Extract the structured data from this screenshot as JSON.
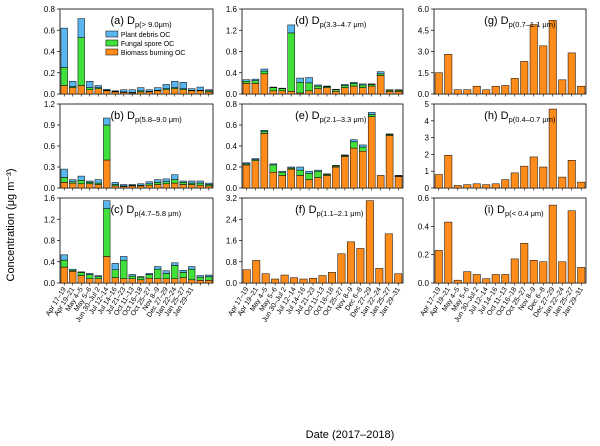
{
  "figure": {
    "ylabel": "Concentration (μg m⁻³)",
    "xlabel": "Date (2017–2018)"
  },
  "colors": {
    "plant": "#5ab6ee",
    "fungal": "#41e03b",
    "biomass": "#ff8c1a",
    "edge": "#000000"
  },
  "chart_data": [
    {
      "type": "bar",
      "stacked": true,
      "id": "a",
      "prefix": "(a) D",
      "sub": "p(> 9.0μm)",
      "ylim": [
        0,
        0.8
      ],
      "yticks": [
        0.0,
        0.2,
        0.4,
        0.6,
        0.8
      ],
      "legend": [
        "Plant debris OC",
        "Fungal spore OC",
        "Biomass burning OC"
      ],
      "series": [
        {
          "name": "Biomass burning OC",
          "values": [
            0.08,
            0.06,
            0.08,
            0.04,
            0.05,
            0.03,
            0.02,
            0.015,
            0.01,
            0.02,
            0.02,
            0.03,
            0.04,
            0.05,
            0.04,
            0.03,
            0.03,
            0.02
          ]
        },
        {
          "name": "Fungal spore OC",
          "values": [
            0.17,
            0.01,
            0.45,
            0.02,
            0.01,
            0.005,
            0.005,
            0.005,
            0.005,
            0.01,
            0.005,
            0.005,
            0.01,
            0.01,
            0.01,
            0.005,
            0.005,
            0.01
          ]
        },
        {
          "name": "Plant debris OC",
          "values": [
            0.37,
            0.05,
            0.18,
            0.06,
            0.02,
            0.01,
            0.005,
            0.02,
            0.025,
            0.03,
            0.015,
            0.025,
            0.04,
            0.06,
            0.06,
            0.015,
            0.03,
            0.01
          ]
        }
      ]
    },
    {
      "type": "bar",
      "stacked": true,
      "id": "b",
      "prefix": "(b) D",
      "sub": "p(5.8–9.0 μm)",
      "ylim": [
        0,
        1.2
      ],
      "yticks": [
        0.0,
        0.3,
        0.6,
        0.9,
        1.2
      ],
      "series": [
        {
          "name": "Biomass burning OC",
          "values": [
            0.08,
            0.07,
            0.06,
            0.06,
            0.05,
            0.4,
            0.03,
            0.02,
            0.03,
            0.03,
            0.04,
            0.05,
            0.06,
            0.07,
            0.05,
            0.05,
            0.04,
            0.03
          ]
        },
        {
          "name": "Fungal spore OC",
          "values": [
            0.07,
            0.02,
            0.05,
            0.02,
            0.02,
            0.5,
            0.02,
            0.01,
            0.01,
            0.01,
            0.02,
            0.03,
            0.03,
            0.05,
            0.03,
            0.02,
            0.03,
            0.02
          ]
        },
        {
          "name": "Plant debris OC",
          "values": [
            0.12,
            0.03,
            0.06,
            0.02,
            0.05,
            0.1,
            0.03,
            0.02,
            0.01,
            0.02,
            0.03,
            0.04,
            0.04,
            0.07,
            0.02,
            0.03,
            0.03,
            0.02
          ]
        }
      ]
    },
    {
      "type": "bar",
      "stacked": true,
      "id": "c",
      "prefix": "(c) D",
      "sub": "p(4.7–5.8 μm)",
      "ylim": [
        0,
        1.6
      ],
      "yticks": [
        0.0,
        0.4,
        0.8,
        1.2,
        1.6
      ],
      "series": [
        {
          "name": "Biomass burning OC",
          "values": [
            0.3,
            0.22,
            0.14,
            0.08,
            0.08,
            0.5,
            0.1,
            0.08,
            0.08,
            0.06,
            0.09,
            0.08,
            0.08,
            0.08,
            0.1,
            0.06,
            0.05,
            0.05
          ]
        },
        {
          "name": "Fungal spore OC",
          "values": [
            0.13,
            0.02,
            0.06,
            0.08,
            0.04,
            0.9,
            0.15,
            0.35,
            0.05,
            0.05,
            0.07,
            0.18,
            0.1,
            0.25,
            0.1,
            0.2,
            0.06,
            0.07
          ]
        },
        {
          "name": "Plant debris OC",
          "values": [
            0.1,
            0.02,
            0.01,
            0.02,
            0.02,
            0.15,
            0.12,
            0.07,
            0.03,
            0.01,
            0.02,
            0.05,
            0.05,
            0.05,
            0.04,
            0.05,
            0.03,
            0.03
          ]
        }
      ]
    },
    {
      "type": "bar",
      "stacked": true,
      "id": "d",
      "prefix": "(d) D",
      "sub": "p(3.3–4.7 μm)",
      "ylim": [
        0,
        1.6
      ],
      "yticks": [
        0.0,
        0.4,
        0.8,
        1.2,
        1.6
      ],
      "series": [
        {
          "name": "Biomass burning OC",
          "values": [
            0.2,
            0.2,
            0.38,
            0.06,
            0.06,
            0.05,
            0.02,
            0.06,
            0.1,
            0.12,
            0.05,
            0.12,
            0.15,
            0.12,
            0.15,
            0.35,
            0.05,
            0.05
          ]
        },
        {
          "name": "Fungal spore OC",
          "values": [
            0.04,
            0.05,
            0.05,
            0.06,
            0.04,
            1.1,
            0.2,
            0.15,
            0.05,
            0.02,
            0.03,
            0.04,
            0.05,
            0.05,
            0.03,
            0.03,
            0.02,
            0.02
          ]
        },
        {
          "name": "Plant debris OC",
          "values": [
            0.03,
            0.03,
            0.04,
            0.01,
            0.01,
            0.15,
            0.08,
            0.1,
            0.02,
            0.01,
            0.01,
            0.02,
            0.02,
            0.02,
            0.01,
            0.04,
            0.01,
            0.01
          ]
        }
      ]
    },
    {
      "type": "bar",
      "stacked": true,
      "id": "e",
      "prefix": "(e) D",
      "sub": "p(2.1–3.3 μm)",
      "ylim": [
        0,
        0.8
      ],
      "yticks": [
        0.0,
        0.2,
        0.4,
        0.6,
        0.8
      ],
      "series": [
        {
          "name": "Biomass burning OC",
          "values": [
            0.22,
            0.26,
            0.52,
            0.15,
            0.12,
            0.18,
            0.12,
            0.08,
            0.1,
            0.12,
            0.2,
            0.3,
            0.38,
            0.35,
            0.68,
            0.12,
            0.5,
            0.11
          ]
        },
        {
          "name": "Fungal spore OC",
          "values": [
            0.01,
            0.01,
            0.02,
            0.07,
            0.03,
            0.01,
            0.05,
            0.06,
            0.06,
            0.01,
            0.01,
            0.01,
            0.06,
            0.04,
            0.02,
            0.0,
            0.01,
            0.005
          ]
        },
        {
          "name": "Plant debris OC",
          "values": [
            0.01,
            0.01,
            0.01,
            0.01,
            0.01,
            0.01,
            0.03,
            0.02,
            0.01,
            0.005,
            0.005,
            0.005,
            0.02,
            0.02,
            0.02,
            0.0,
            0.005,
            0.005
          ]
        }
      ]
    },
    {
      "type": "bar",
      "stacked": true,
      "id": "f",
      "prefix": "(f) D",
      "sub": "p(1.1–2.1 μm)",
      "ylim": [
        0,
        3.2
      ],
      "yticks": [
        0.0,
        0.8,
        1.6,
        2.4,
        3.2
      ],
      "series": [
        {
          "name": "Biomass burning OC",
          "values": [
            0.5,
            0.85,
            0.35,
            0.15,
            0.3,
            0.2,
            0.15,
            0.18,
            0.28,
            0.4,
            1.1,
            1.55,
            1.3,
            3.1,
            0.55,
            1.85,
            0.35
          ]
        }
      ]
    },
    {
      "type": "bar",
      "stacked": true,
      "id": "g",
      "prefix": "(g) D",
      "sub": "p(0.7–1.1 μm)",
      "ylim": [
        0,
        6.0
      ],
      "yticks": [
        0.0,
        1.5,
        3.0,
        4.5,
        6.0
      ],
      "series": [
        {
          "name": "Biomass burning OC",
          "values": [
            1.5,
            2.8,
            0.3,
            0.3,
            0.55,
            0.3,
            0.55,
            0.6,
            1.1,
            2.3,
            4.9,
            3.4,
            5.2,
            1.0,
            2.9,
            0.55
          ]
        }
      ]
    },
    {
      "type": "bar",
      "stacked": true,
      "id": "h",
      "prefix": "(h) D",
      "sub": "p(0.4–0.7 μm)",
      "ylim": [
        0,
        5
      ],
      "yticks": [
        0,
        1,
        2,
        3,
        4,
        5
      ],
      "series": [
        {
          "name": "Biomass burning OC",
          "values": [
            0.8,
            1.95,
            0.15,
            0.2,
            0.25,
            0.2,
            0.25,
            0.5,
            0.9,
            1.3,
            1.85,
            1.25,
            4.7,
            0.65,
            1.65,
            0.35
          ]
        }
      ]
    },
    {
      "type": "bar",
      "stacked": true,
      "id": "i",
      "prefix": "(i) D",
      "sub": "p(< 0.4 μm)",
      "ylim": [
        0,
        0.6
      ],
      "yticks": [
        0.0,
        0.2,
        0.4,
        0.6
      ],
      "series": [
        {
          "name": "Biomass burning OC",
          "values": [
            0.23,
            0.43,
            0.02,
            0.08,
            0.06,
            0.03,
            0.06,
            0.06,
            0.17,
            0.28,
            0.16,
            0.15,
            0.55,
            0.15,
            0.51,
            0.11
          ]
        }
      ]
    }
  ],
  "xticks_left": [
    "Apr 17–19",
    "Apr 19–21",
    "May 4–5",
    "May 5–6",
    "Jun 30–Jul 2",
    "Jul 12–14",
    "Jul 14–16",
    "Jul 21–23",
    "Oct 11–13",
    "Oct 16–18",
    "Oct 25–27",
    "Nov 8–9",
    "Dec 27–29",
    "Jan 22–24",
    "Jan 25–27",
    "Jan 29–31"
  ],
  "xticks_mid": [
    "Apr 17–19",
    "Apr 19–21",
    "May 4–5",
    "May 5–6",
    "Jun 30–Jul 2",
    "Jul 12–14",
    "Jul 14–16",
    "Jul 21–23",
    "Oct 11–13",
    "Oct 16–18",
    "Oct 25–27",
    "Nov 8–9",
    "Dec 6–8",
    "Dec 27–29",
    "Jan 22–24",
    "Jan 25–27",
    "Jan 29–31"
  ],
  "xticks_right": [
    "Apr 17–19",
    "Apr 19–21",
    "May 4–5",
    "May 5–6",
    "Jun 30–Jul 2",
    "Jul 12–14",
    "Jul 14–16",
    "Oct 11–13",
    "Oct 16–18",
    "Oct 25–27",
    "Nov 8–9",
    "Dec 6–8",
    "Dec 27–29",
    "Jan 22–24",
    "Jan 25–27",
    "Jan 29–31"
  ]
}
